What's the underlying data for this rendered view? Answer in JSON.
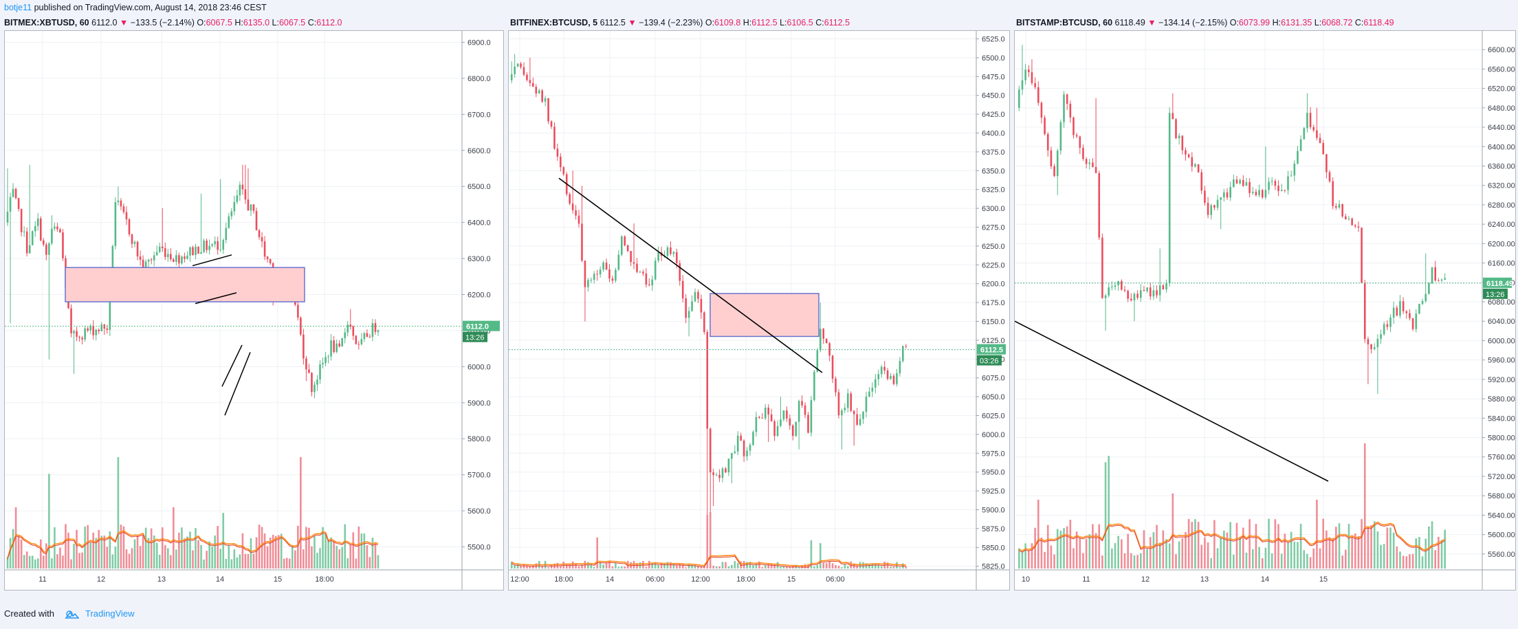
{
  "publish": {
    "author": "botje11",
    "text": "published on TradingView.com, August 14, 2018 23:46 CEST"
  },
  "footer": {
    "created_with": "Created with",
    "brand": "TradingView"
  },
  "colors": {
    "up": "#53b987",
    "down": "#eb4d5c",
    "volUp": "#7fcba5",
    "volDown": "#f08c96",
    "box": "#ffcfcf",
    "boxBorder": "#6674d0",
    "maOrange": "#ff8c1a",
    "maRed": "#e0402e"
  },
  "panels": [
    {
      "symbol": "BITMEX:XBTUSD, 60",
      "last": "6112.0",
      "change": "−133.5 (−2.14%)",
      "o": "6067.5",
      "h": "6135.0",
      "l": "6067.5",
      "c": "6112.0",
      "price_label": "6112.0",
      "timer": "13:26",
      "chart_data": {
        "type": "candlestick",
        "y_ticks": [
          "6900.0",
          "6800.0",
          "6700.0",
          "6600.0",
          "6500.0",
          "6400.0",
          "6300.0",
          "6200.0",
          "6100.0",
          "6000.0",
          "5900.0",
          "5800.0",
          "5700.0",
          "5600.0",
          "5500.0"
        ],
        "x_ticks": [
          "11",
          "12",
          "13",
          "14",
          "15",
          "18:00"
        ],
        "ylim": [
          5440,
          6920
        ],
        "last_price": 6112,
        "anchors": [
          [
            0,
            6400
          ],
          [
            3,
            6480
          ],
          [
            8,
            6330
          ],
          [
            12,
            6400
          ],
          [
            15,
            6300
          ],
          [
            17,
            6380
          ],
          [
            20,
            6370
          ],
          [
            24,
            6080
          ],
          [
            30,
            6100
          ],
          [
            37,
            6110
          ],
          [
            40,
            6460
          ],
          [
            44,
            6400
          ],
          [
            50,
            6270
          ],
          [
            56,
            6330
          ],
          [
            62,
            6300
          ],
          [
            70,
            6330
          ],
          [
            78,
            6340
          ],
          [
            85,
            6490
          ],
          [
            90,
            6420
          ],
          [
            94,
            6310
          ],
          [
            99,
            6250
          ],
          [
            104,
            6220
          ],
          [
            108,
            6040
          ],
          [
            111,
            5940
          ],
          [
            114,
            5990
          ],
          [
            118,
            6060
          ],
          [
            121,
            6040
          ],
          [
            124,
            6130
          ],
          [
            128,
            6050
          ],
          [
            131,
            6090
          ],
          [
            134,
            6112
          ]
        ],
        "spikes": [
          [
            0,
            6550
          ],
          [
            1,
            6120
          ],
          [
            8,
            6560
          ],
          [
            15,
            6020
          ],
          [
            16,
            6420
          ],
          [
            24,
            5980
          ],
          [
            40,
            6500
          ],
          [
            56,
            6440
          ],
          [
            70,
            6480
          ],
          [
            77,
            6520
          ],
          [
            85,
            6560
          ],
          [
            86,
            6560
          ],
          [
            87,
            6550
          ],
          [
            96,
            6170
          ],
          [
            105,
            6160
          ],
          [
            108,
            5960
          ],
          [
            111,
            5920
          ],
          [
            124,
            6160
          ]
        ],
        "volume_spikes": [
          [
            3,
            0.55
          ],
          [
            15,
            0.85
          ],
          [
            40,
            1.0
          ],
          [
            106,
            1.0
          ],
          [
            78,
            0.5
          ],
          [
            60,
            0.55
          ]
        ],
        "annotations": {
          "zone": [
            6180,
            6275
          ],
          "lines": [
            "channel-upper",
            "channel-lower",
            "flag"
          ]
        }
      }
    },
    {
      "symbol": "BITFINEX:BTCUSD, 5",
      "last": "6112.5",
      "change": "−139.4 (−2.23%)",
      "o": "6109.8",
      "h": "6112.5",
      "l": "6106.5",
      "c": "6112.5",
      "price_label": "6112.5",
      "timer": "03:26",
      "chart_data": {
        "type": "candlestick",
        "y_ticks": [
          "6525.0",
          "6500.0",
          "6475.0",
          "6450.0",
          "6425.0",
          "6400.0",
          "6375.0",
          "6350.0",
          "6325.0",
          "6300.0",
          "6275.0",
          "6250.0",
          "6225.0",
          "6200.0",
          "6175.0",
          "6150.0",
          "6125.0",
          "6100.0",
          "6075.0",
          "6050.0",
          "6025.0",
          "6000.0",
          "5975.0",
          "5950.0",
          "5925.0",
          "5900.0",
          "5875.0",
          "5850.0",
          "5825.0"
        ],
        "x_ticks": [
          "12:00",
          "18:00",
          "14",
          "06:00",
          "12:00",
          "18:00",
          "15",
          "06:00"
        ],
        "ylim": [
          5822,
          6530
        ],
        "last_price": 6112.5,
        "anchors": [
          [
            0,
            6470
          ],
          [
            3,
            6485
          ],
          [
            8,
            6460
          ],
          [
            12,
            6440
          ],
          [
            15,
            6380
          ],
          [
            20,
            6310
          ],
          [
            23,
            6280
          ],
          [
            25,
            6190
          ],
          [
            28,
            6210
          ],
          [
            31,
            6230
          ],
          [
            34,
            6200
          ],
          [
            37,
            6260
          ],
          [
            40,
            6230
          ],
          [
            43,
            6220
          ],
          [
            46,
            6200
          ],
          [
            49,
            6240
          ],
          [
            52,
            6245
          ],
          [
            55,
            6230
          ],
          [
            58,
            6160
          ],
          [
            61,
            6190
          ],
          [
            64,
            6140
          ],
          [
            65,
            6010
          ],
          [
            66,
            5945
          ],
          [
            69,
            5940
          ],
          [
            72,
            5960
          ],
          [
            75,
            5990
          ],
          [
            78,
            5970
          ],
          [
            81,
            6020
          ],
          [
            84,
            6030
          ],
          [
            87,
            6000
          ],
          [
            90,
            6040
          ],
          [
            93,
            6000
          ],
          [
            95,
            6050
          ],
          [
            98,
            6010
          ],
          [
            100,
            6090
          ],
          [
            102,
            6140
          ],
          [
            105,
            6100
          ],
          [
            108,
            6030
          ],
          [
            111,
            6050
          ],
          [
            114,
            6010
          ],
          [
            117,
            6050
          ],
          [
            120,
            6070
          ],
          [
            123,
            6090
          ],
          [
            126,
            6060
          ],
          [
            129,
            6110
          ]
        ],
        "spikes": [
          [
            0,
            6495
          ],
          [
            1,
            6505
          ],
          [
            6,
            6500
          ],
          [
            20,
            6350
          ],
          [
            23,
            6330
          ],
          [
            24,
            6150
          ],
          [
            40,
            6280
          ],
          [
            58,
            6130
          ],
          [
            64,
            5830
          ],
          [
            65,
            5840
          ],
          [
            66,
            5905
          ],
          [
            72,
            5935
          ],
          [
            84,
            5990
          ],
          [
            88,
            6050
          ],
          [
            94,
            5980
          ],
          [
            101,
            6175
          ],
          [
            108,
            5980
          ],
          [
            112,
            5985
          ],
          [
            123,
            6080
          ]
        ],
        "volume_spikes": [
          [
            64,
            0.95
          ],
          [
            65,
            1.0
          ],
          [
            28,
            0.55
          ],
          [
            98,
            0.5
          ],
          [
            101,
            0.45
          ]
        ],
        "annotations": {
          "zone": [
            6130,
            6187
          ],
          "lines": [
            "downtrend"
          ]
        }
      }
    },
    {
      "symbol": "BITSTAMP:BTCUSD, 60",
      "last": "6118.49",
      "change": "−134.14 (−2.15%)",
      "o": "6073.99",
      "h": "6131.35",
      "l": "6068.72",
      "c": "6118.49",
      "price_label": "6118.49",
      "timer": "13:26",
      "chart_data": {
        "type": "candlestick",
        "y_ticks": [
          "6600.00",
          "6560.00",
          "6520.00",
          "6480.00",
          "6440.00",
          "6400.00",
          "6360.00",
          "6320.00",
          "6280.00",
          "6240.00",
          "6200.00",
          "6160.00",
          "6120.00",
          "6080.00",
          "6040.00",
          "6000.00",
          "5960.00",
          "5920.00",
          "5880.00",
          "5840.00",
          "5800.00",
          "5760.00",
          "5720.00",
          "5680.00",
          "5640.00",
          "5600.00",
          "5560.00"
        ],
        "x_ticks": [
          "10",
          "11",
          "12",
          "13",
          "14",
          "15"
        ],
        "ylim": [
          5530,
          6630
        ],
        "last_price": 6118.49,
        "anchors": [
          [
            0,
            6480
          ],
          [
            3,
            6570
          ],
          [
            6,
            6520
          ],
          [
            9,
            6430
          ],
          [
            12,
            6340
          ],
          [
            15,
            6500
          ],
          [
            18,
            6430
          ],
          [
            22,
            6370
          ],
          [
            25,
            6340
          ],
          [
            27,
            6100
          ],
          [
            31,
            6120
          ],
          [
            35,
            6080
          ],
          [
            40,
            6100
          ],
          [
            44,
            6100
          ],
          [
            47,
            6110
          ],
          [
            48,
            6460
          ],
          [
            52,
            6400
          ],
          [
            56,
            6360
          ],
          [
            60,
            6260
          ],
          [
            63,
            6290
          ],
          [
            66,
            6300
          ],
          [
            70,
            6340
          ],
          [
            74,
            6300
          ],
          [
            77,
            6300
          ],
          [
            80,
            6330
          ],
          [
            84,
            6310
          ],
          [
            88,
            6380
          ],
          [
            91,
            6460
          ],
          [
            95,
            6420
          ],
          [
            99,
            6290
          ],
          [
            103,
            6250
          ],
          [
            107,
            6240
          ],
          [
            109,
            6000
          ],
          [
            112,
            5980
          ],
          [
            116,
            6040
          ],
          [
            120,
            6070
          ],
          [
            124,
            6030
          ],
          [
            127,
            6080
          ],
          [
            130,
            6140
          ],
          [
            133,
            6118
          ]
        ],
        "spikes": [
          [
            1,
            6610
          ],
          [
            4,
            6580
          ],
          [
            12,
            6300
          ],
          [
            24,
            6500
          ],
          [
            27,
            6020
          ],
          [
            36,
            6040
          ],
          [
            44,
            6190
          ],
          [
            48,
            6510
          ],
          [
            63,
            6230
          ],
          [
            77,
            6400
          ],
          [
            90,
            6510
          ],
          [
            93,
            6480
          ],
          [
            107,
            6190
          ],
          [
            109,
            5910
          ],
          [
            112,
            5890
          ],
          [
            127,
            6180
          ]
        ],
        "volume_spikes": [
          [
            27,
            0.85
          ],
          [
            28,
            0.9
          ],
          [
            48,
            0.6
          ],
          [
            93,
            0.55
          ],
          [
            108,
            1.0
          ],
          [
            6,
            0.55
          ]
        ],
        "annotations": {
          "lines": [
            "downtrend"
          ]
        }
      }
    }
  ]
}
